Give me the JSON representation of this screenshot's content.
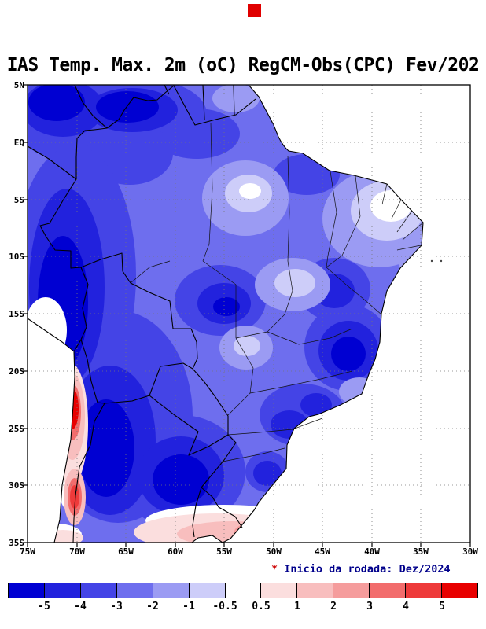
{
  "title": "IAS Temp. Max. 2m (oC) RegCM-Obs(CPC) Fev/202",
  "logo": {
    "color": "#e00000"
  },
  "map": {
    "lat_labels": [
      "5N",
      "EQ",
      "5S",
      "10S",
      "15S",
      "20S",
      "25S",
      "30S",
      "35S"
    ],
    "lon_labels": [
      "75W",
      "70W",
      "65W",
      "60W",
      "55W",
      "50W",
      "45W",
      "40W",
      "35W",
      "30W"
    ]
  },
  "footer": {
    "note_star": "*",
    "note_text": " Inicio da rodada: Dez/2024"
  },
  "colorbar": {
    "colors": [
      "#0000d2",
      "#2222dd",
      "#4444e6",
      "#6e6eee",
      "#9b9bf3",
      "#cdcdf9",
      "#ffffff",
      "#fbdede",
      "#f8bebe",
      "#f59c9c",
      "#f26c6c",
      "#ee3a3a",
      "#e80000"
    ],
    "labels": [
      "-5",
      "-4",
      "-3",
      "-2",
      "-1",
      "-0.5",
      "0.5",
      "1",
      "2",
      "3",
      "4",
      "5"
    ]
  },
  "chart_data": {
    "type": "heatmap",
    "title": "IAS Temp. Max. 2m (oC) RegCM-Obs(CPC) Fev/202",
    "variable": "Bias of 2m maximum temperature (oC), RegCM model minus CPC observations, February",
    "x": {
      "label": "longitude",
      "ticks": [
        "75W",
        "70W",
        "65W",
        "60W",
        "55W",
        "50W",
        "45W",
        "40W",
        "35W",
        "30W"
      ]
    },
    "y": {
      "label": "latitude",
      "ticks": [
        "5N",
        "EQ",
        "5S",
        "10S",
        "15S",
        "20S",
        "25S",
        "30S",
        "35S"
      ]
    },
    "levels": [
      -5,
      -4,
      -3,
      -2,
      -1,
      -0.5,
      0.5,
      1,
      2,
      3,
      4,
      5
    ],
    "palette": [
      "#0000d2",
      "#2222dd",
      "#4444e6",
      "#6e6eee",
      "#9b9bf3",
      "#cdcdf9",
      "#ffffff",
      "#fbdede",
      "#f8bebe",
      "#f59c9c",
      "#f26c6c",
      "#ee3a3a",
      "#e80000"
    ],
    "legend_position": "bottom",
    "grid": "dotted, every 5 degrees",
    "annotation": "* Inicio da rodada: Dez/2024",
    "features": [
      {
        "region": "most of Brazil and Amazon basin",
        "bias_range_degC": "-3 to -1"
      },
      {
        "region": "northwest corner (Colombia/Venezuela, ~5N-EQ, 60W-75W)",
        "bias_range_degC": "-5 or less"
      },
      {
        "region": "western Amazon / Peru-Bolivia Andes (10S-20S, 65W-75W)",
        "bias_range_degC": "-5 or less"
      },
      {
        "region": "northern Argentina / Paraguay (22S-32S, 55W-65W)",
        "bias_range_degC": "-5 to -3"
      },
      {
        "region": "east-central Brazil interior (~15S-19S, ~41W-44W)",
        "bias_range_degC": "-5 to -3"
      },
      {
        "region": "sao paulo region dark spots (~20S-24S, 45W-50W)",
        "bias_range_degC": "-4 to -3"
      },
      {
        "region": "northeast Brazil coast (~3S-8S, 35W-40W)",
        "bias_range_degC": "-1 to 0.5"
      },
      {
        "region": "central light patch (~4S-6S, ~52W-54W)",
        "bias_range_degC": "-1 to 0.5"
      },
      {
        "region": "Chilean Andes (~22S-25S and ~29S-31S, ~70W)",
        "bias_range_degC": "+2 to +5"
      },
      {
        "region": "far southern Brazil / Uruguay border (~33S-35S, 50W-60W)",
        "bias_range_degC": "+0.5 to +4"
      }
    ]
  }
}
